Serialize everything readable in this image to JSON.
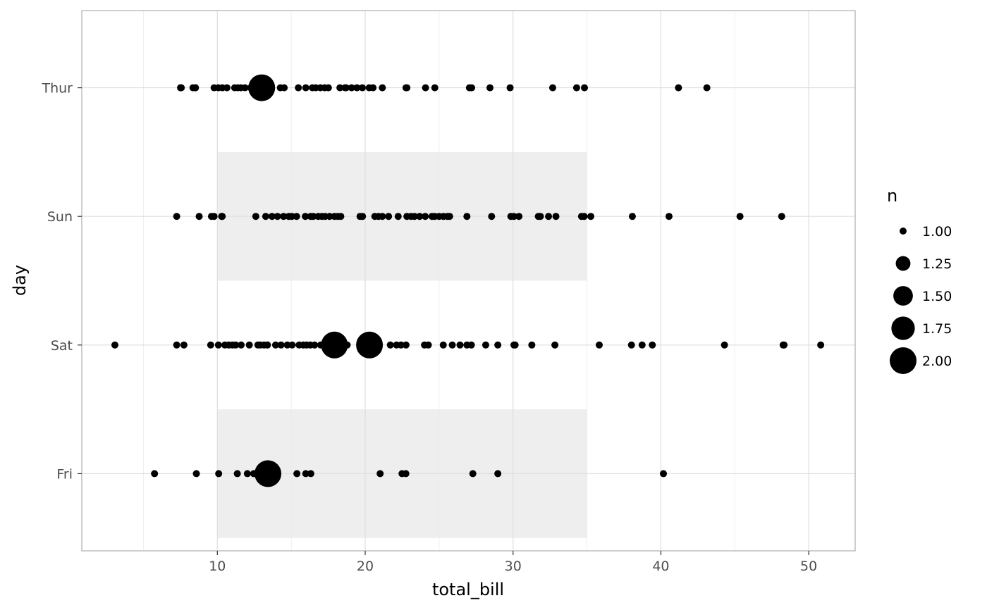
{
  "chart_data": {
    "type": "scatter",
    "title": "",
    "xlabel": "total_bill",
    "ylabel": "day",
    "xlim": [
      0.83,
      53.14
    ],
    "xticks": [
      10,
      20,
      30,
      40,
      50
    ],
    "categories": [
      "Fri",
      "Sat",
      "Sun",
      "Thur"
    ],
    "grid": true,
    "legend_position": "right",
    "point_color": "#000000",
    "band_color": "#eeeeee",
    "highlight_bands": [
      {
        "category": "Fri",
        "x": [
          10,
          35
        ]
      },
      {
        "category": "Sun",
        "x": [
          10,
          35
        ]
      }
    ],
    "size_legend": {
      "title": "n",
      "breaks": [
        "1.00",
        "1.25",
        "1.50",
        "1.75",
        "2.00"
      ],
      "values": [
        1.0,
        1.25,
        1.5,
        1.75,
        2.0
      ]
    },
    "series": [
      {
        "category": "Fri",
        "points": [
          [
            5.75,
            1
          ],
          [
            8.58,
            1
          ],
          [
            10.09,
            1
          ],
          [
            11.35,
            1
          ],
          [
            12.03,
            1
          ],
          [
            12.46,
            1
          ],
          [
            13.42,
            2
          ],
          [
            15.38,
            1
          ],
          [
            15.98,
            1
          ],
          [
            16.32,
            1
          ],
          [
            21.01,
            1
          ],
          [
            22.49,
            1
          ],
          [
            22.75,
            1
          ],
          [
            27.28,
            1
          ],
          [
            28.97,
            1
          ],
          [
            40.17,
            1
          ]
        ]
      },
      {
        "category": "Sat",
        "points": [
          [
            3.07,
            1
          ],
          [
            7.25,
            1
          ],
          [
            7.74,
            1
          ],
          [
            9.55,
            1
          ],
          [
            10.07,
            1
          ],
          [
            10.51,
            1
          ],
          [
            10.77,
            1
          ],
          [
            11.02,
            1
          ],
          [
            11.24,
            1
          ],
          [
            11.61,
            1
          ],
          [
            12.16,
            1
          ],
          [
            12.74,
            1
          ],
          [
            12.9,
            1
          ],
          [
            13.16,
            1
          ],
          [
            13.39,
            1
          ],
          [
            13.94,
            1
          ],
          [
            14.31,
            1
          ],
          [
            14.73,
            1
          ],
          [
            15.06,
            1
          ],
          [
            15.53,
            1
          ],
          [
            15.81,
            1
          ],
          [
            16.04,
            1
          ],
          [
            16.29,
            1
          ],
          [
            16.58,
            1
          ],
          [
            16.99,
            1
          ],
          [
            17.47,
            1
          ],
          [
            17.92,
            2
          ],
          [
            18.78,
            1
          ],
          [
            20.29,
            2
          ],
          [
            21.7,
            1
          ],
          [
            22.12,
            1
          ],
          [
            22.42,
            1
          ],
          [
            22.76,
            1
          ],
          [
            24.01,
            1
          ],
          [
            24.27,
            1
          ],
          [
            25.28,
            1
          ],
          [
            25.89,
            1
          ],
          [
            26.41,
            1
          ],
          [
            26.88,
            1
          ],
          [
            27.18,
            1
          ],
          [
            28.15,
            1
          ],
          [
            28.97,
            1
          ],
          [
            30.06,
            1
          ],
          [
            30.14,
            1
          ],
          [
            31.27,
            1
          ],
          [
            32.83,
            1
          ],
          [
            35.83,
            1
          ],
          [
            38.01,
            1
          ],
          [
            38.73,
            1
          ],
          [
            39.42,
            1
          ],
          [
            44.3,
            1
          ],
          [
            48.27,
            1
          ],
          [
            48.33,
            1
          ],
          [
            50.81,
            1
          ]
        ]
      },
      {
        "category": "Sun",
        "points": [
          [
            7.25,
            1
          ],
          [
            8.77,
            1
          ],
          [
            9.6,
            1
          ],
          [
            9.78,
            1
          ],
          [
            10.29,
            1
          ],
          [
            10.33,
            1
          ],
          [
            12.6,
            1
          ],
          [
            13.27,
            1
          ],
          [
            13.7,
            1
          ],
          [
            14.07,
            1
          ],
          [
            14.48,
            1
          ],
          [
            14.83,
            1
          ],
          [
            15.04,
            1
          ],
          [
            15.36,
            1
          ],
          [
            15.95,
            1
          ],
          [
            16.31,
            1
          ],
          [
            16.49,
            1
          ],
          [
            16.82,
            1
          ],
          [
            17.07,
            1
          ],
          [
            17.29,
            1
          ],
          [
            17.59,
            1
          ],
          [
            17.92,
            1
          ],
          [
            18.15,
            1
          ],
          [
            18.35,
            1
          ],
          [
            19.65,
            1
          ],
          [
            19.82,
            1
          ],
          [
            20.65,
            1
          ],
          [
            20.9,
            1
          ],
          [
            21.16,
            1
          ],
          [
            21.58,
            1
          ],
          [
            22.23,
            1
          ],
          [
            22.82,
            1
          ],
          [
            23.1,
            1
          ],
          [
            23.33,
            1
          ],
          [
            23.68,
            1
          ],
          [
            24.06,
            1
          ],
          [
            24.52,
            1
          ],
          [
            24.71,
            1
          ],
          [
            25.0,
            1
          ],
          [
            25.29,
            1
          ],
          [
            25.56,
            1
          ],
          [
            25.71,
            1
          ],
          [
            26.88,
            1
          ],
          [
            28.55,
            1
          ],
          [
            29.85,
            1
          ],
          [
            30.06,
            1
          ],
          [
            30.4,
            1
          ],
          [
            31.71,
            1
          ],
          [
            31.85,
            1
          ],
          [
            32.4,
            1
          ],
          [
            32.9,
            1
          ],
          [
            34.63,
            1
          ],
          [
            34.81,
            1
          ],
          [
            35.26,
            1
          ],
          [
            38.07,
            1
          ],
          [
            40.55,
            1
          ],
          [
            45.35,
            1
          ],
          [
            48.17,
            1
          ]
        ]
      },
      {
        "category": "Thur",
        "points": [
          [
            7.51,
            1
          ],
          [
            7.56,
            1
          ],
          [
            8.35,
            1
          ],
          [
            8.51,
            1
          ],
          [
            8.52,
            1
          ],
          [
            9.78,
            1
          ],
          [
            10.07,
            1
          ],
          [
            10.34,
            1
          ],
          [
            10.65,
            1
          ],
          [
            11.17,
            1
          ],
          [
            11.38,
            1
          ],
          [
            11.59,
            1
          ],
          [
            11.87,
            1
          ],
          [
            12.26,
            1
          ],
          [
            12.43,
            1
          ],
          [
            13.0,
            2
          ],
          [
            14.26,
            1
          ],
          [
            14.52,
            1
          ],
          [
            15.48,
            1
          ],
          [
            15.98,
            1
          ],
          [
            16.43,
            1
          ],
          [
            16.66,
            1
          ],
          [
            16.97,
            1
          ],
          [
            17.26,
            1
          ],
          [
            17.51,
            1
          ],
          [
            18.29,
            1
          ],
          [
            18.64,
            1
          ],
          [
            18.71,
            1
          ],
          [
            19.08,
            1
          ],
          [
            19.44,
            1
          ],
          [
            19.81,
            1
          ],
          [
            20.27,
            1
          ],
          [
            20.53,
            1
          ],
          [
            21.16,
            1
          ],
          [
            22.76,
            1
          ],
          [
            22.82,
            1
          ],
          [
            24.08,
            1
          ],
          [
            24.71,
            1
          ],
          [
            27.05,
            1
          ],
          [
            27.2,
            1
          ],
          [
            28.44,
            1
          ],
          [
            29.8,
            1
          ],
          [
            32.68,
            1
          ],
          [
            34.3,
            1
          ],
          [
            34.83,
            1
          ],
          [
            41.19,
            1
          ],
          [
            43.11,
            1
          ]
        ]
      }
    ]
  }
}
